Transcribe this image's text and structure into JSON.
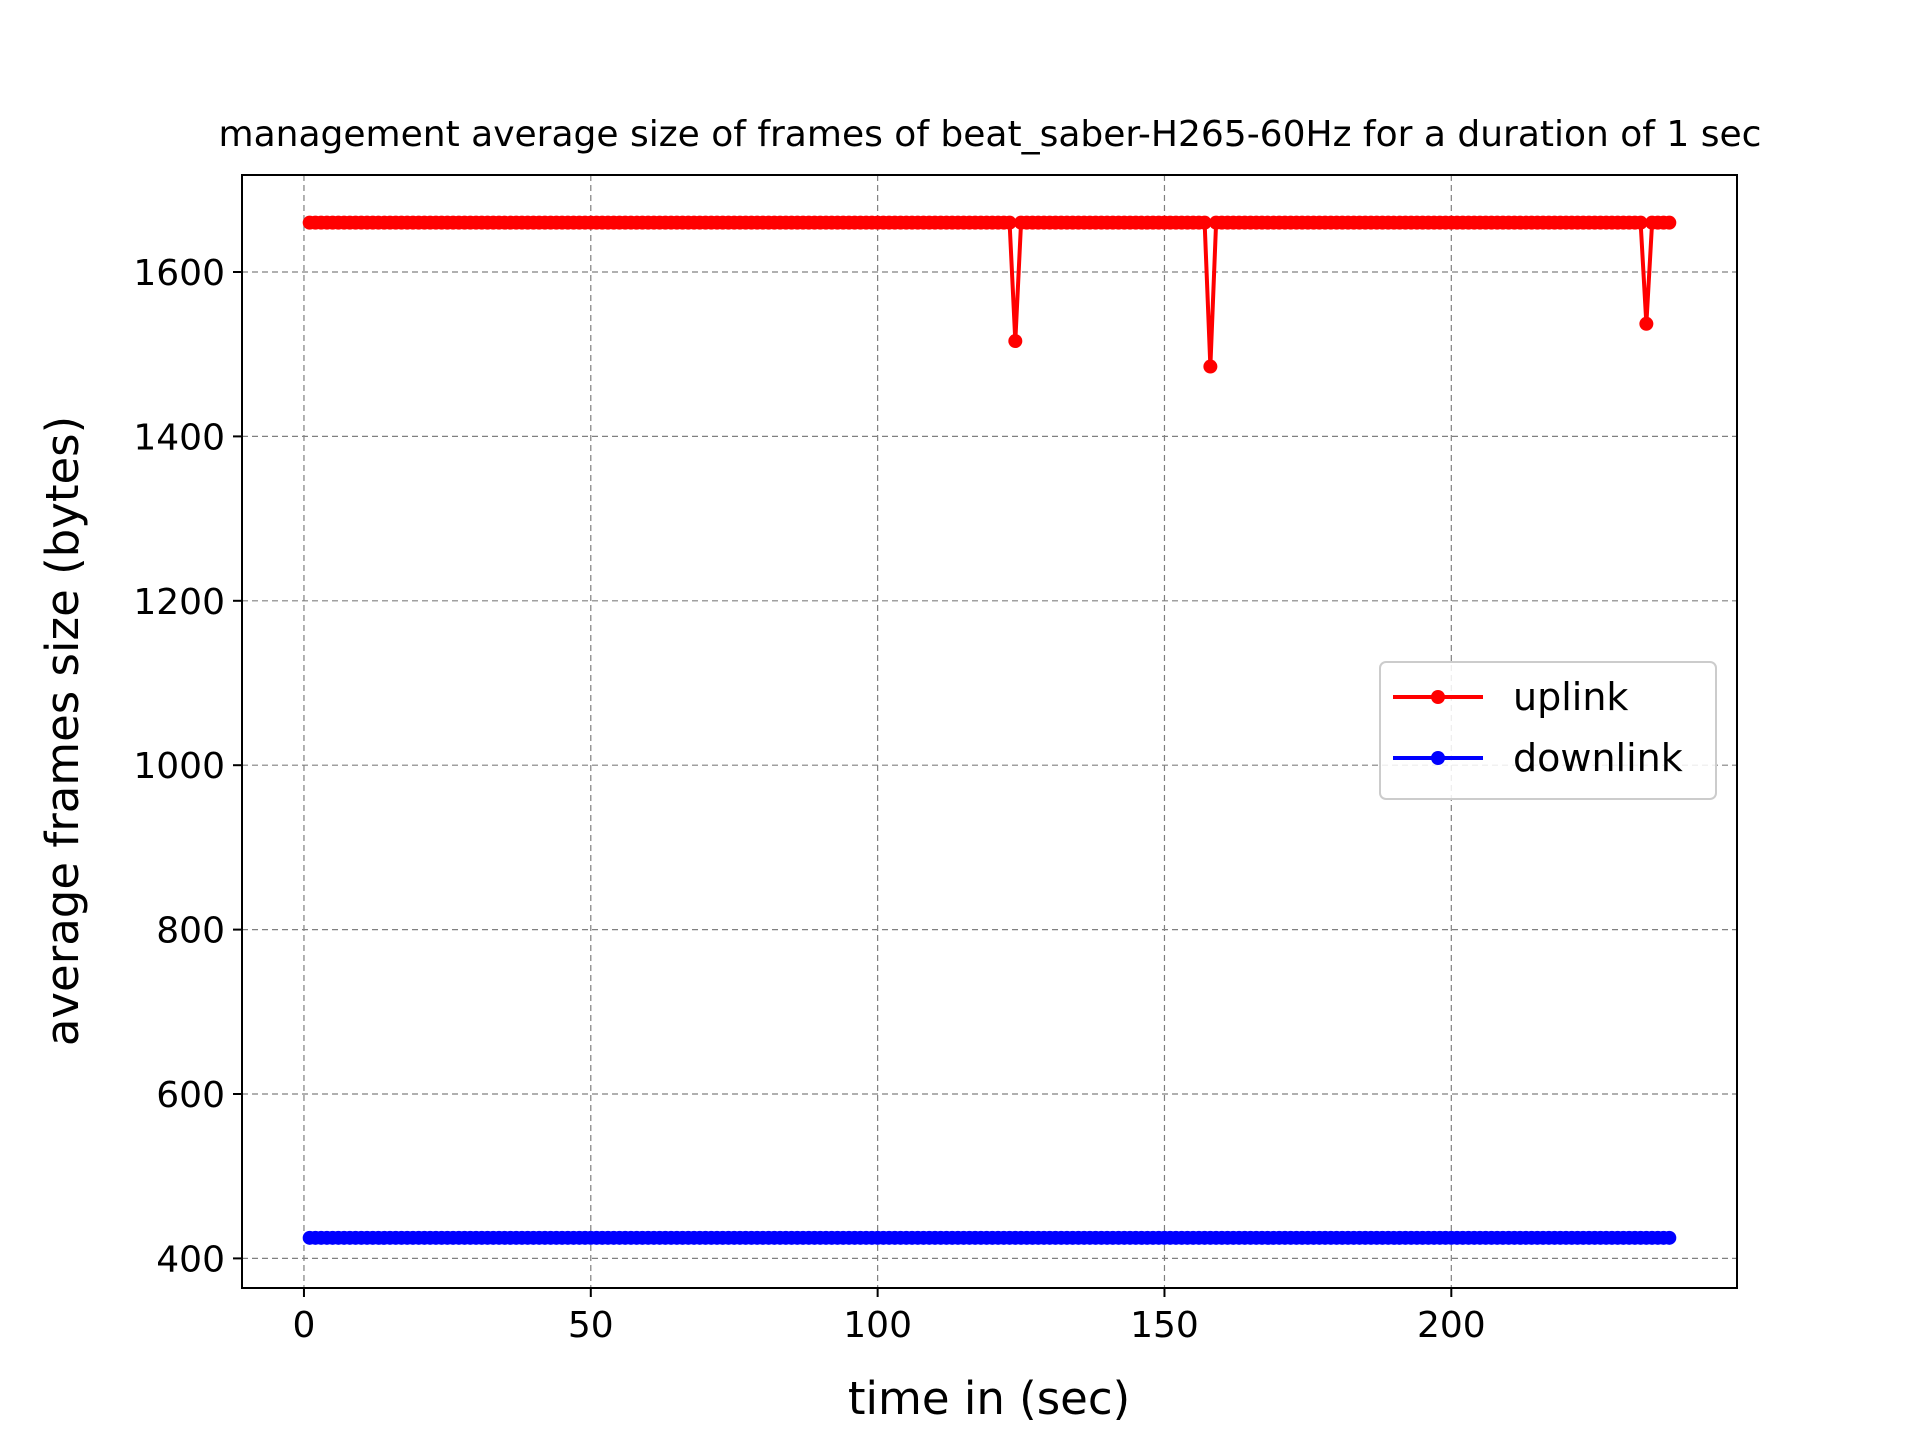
{
  "chart_data": {
    "type": "line",
    "title": "management average size of frames of beat_saber-H265-60Hz for a duration of 1 sec",
    "xlabel": "time in (sec)",
    "ylabel": "average frames size (bytes)",
    "xlim": [
      -10.8,
      249.8
    ],
    "ylim": [
      364,
      1718
    ],
    "xticks": [
      0,
      50,
      100,
      150,
      200
    ],
    "yticks": [
      400,
      600,
      800,
      1000,
      1200,
      1400,
      1600
    ],
    "grid": true,
    "legend_position": "center-right",
    "x": {
      "start": 1,
      "end": 238,
      "step": 1
    },
    "series": [
      {
        "name": "uplink",
        "color": "#ff0000",
        "base_value": 1660,
        "dips": [
          {
            "x": 124,
            "value": 1516
          },
          {
            "x": 158,
            "value": 1485
          },
          {
            "x": 234,
            "value": 1537
          }
        ]
      },
      {
        "name": "downlink",
        "color": "#0000ff",
        "base_value": 425,
        "dips": []
      }
    ]
  }
}
